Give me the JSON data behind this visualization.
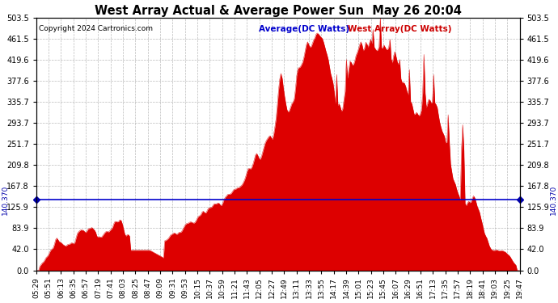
{
  "title": "West Array Actual & Average Power Sun  May 26 20:04",
  "copyright": "Copyright 2024 Cartronics.com",
  "legend_average": "Average(DC Watts)",
  "legend_west": "West Array(DC Watts)",
  "average_value": 140.37,
  "ylim": [
    0.0,
    503.5
  ],
  "yticks": [
    0.0,
    42.0,
    83.9,
    125.9,
    167.8,
    209.8,
    251.7,
    293.7,
    335.7,
    377.6,
    419.6,
    461.5,
    503.5
  ],
  "xtick_labels": [
    "05:29",
    "05:51",
    "06:13",
    "06:35",
    "06:57",
    "07:19",
    "07:41",
    "08:03",
    "08:25",
    "08:47",
    "09:09",
    "09:31",
    "09:53",
    "10:15",
    "10:37",
    "10:59",
    "11:21",
    "11:43",
    "12:05",
    "12:27",
    "12:49",
    "13:11",
    "13:33",
    "13:55",
    "14:17",
    "14:39",
    "15:01",
    "15:23",
    "15:45",
    "16:07",
    "16:29",
    "16:51",
    "17:13",
    "17:35",
    "17:57",
    "18:19",
    "18:41",
    "19:03",
    "19:25",
    "19:47"
  ],
  "background_color": "#ffffff",
  "plot_bg_color": "#ffffff",
  "grid_color": "#aaaaaa",
  "bar_color": "#dd0000",
  "avg_line_color": "#0000cc",
  "title_color": "#000000",
  "copyright_color": "#000000",
  "avg_label_color": "#0000cc",
  "west_label_color": "#cc0000",
  "avg_marker_color": "#0000aa"
}
